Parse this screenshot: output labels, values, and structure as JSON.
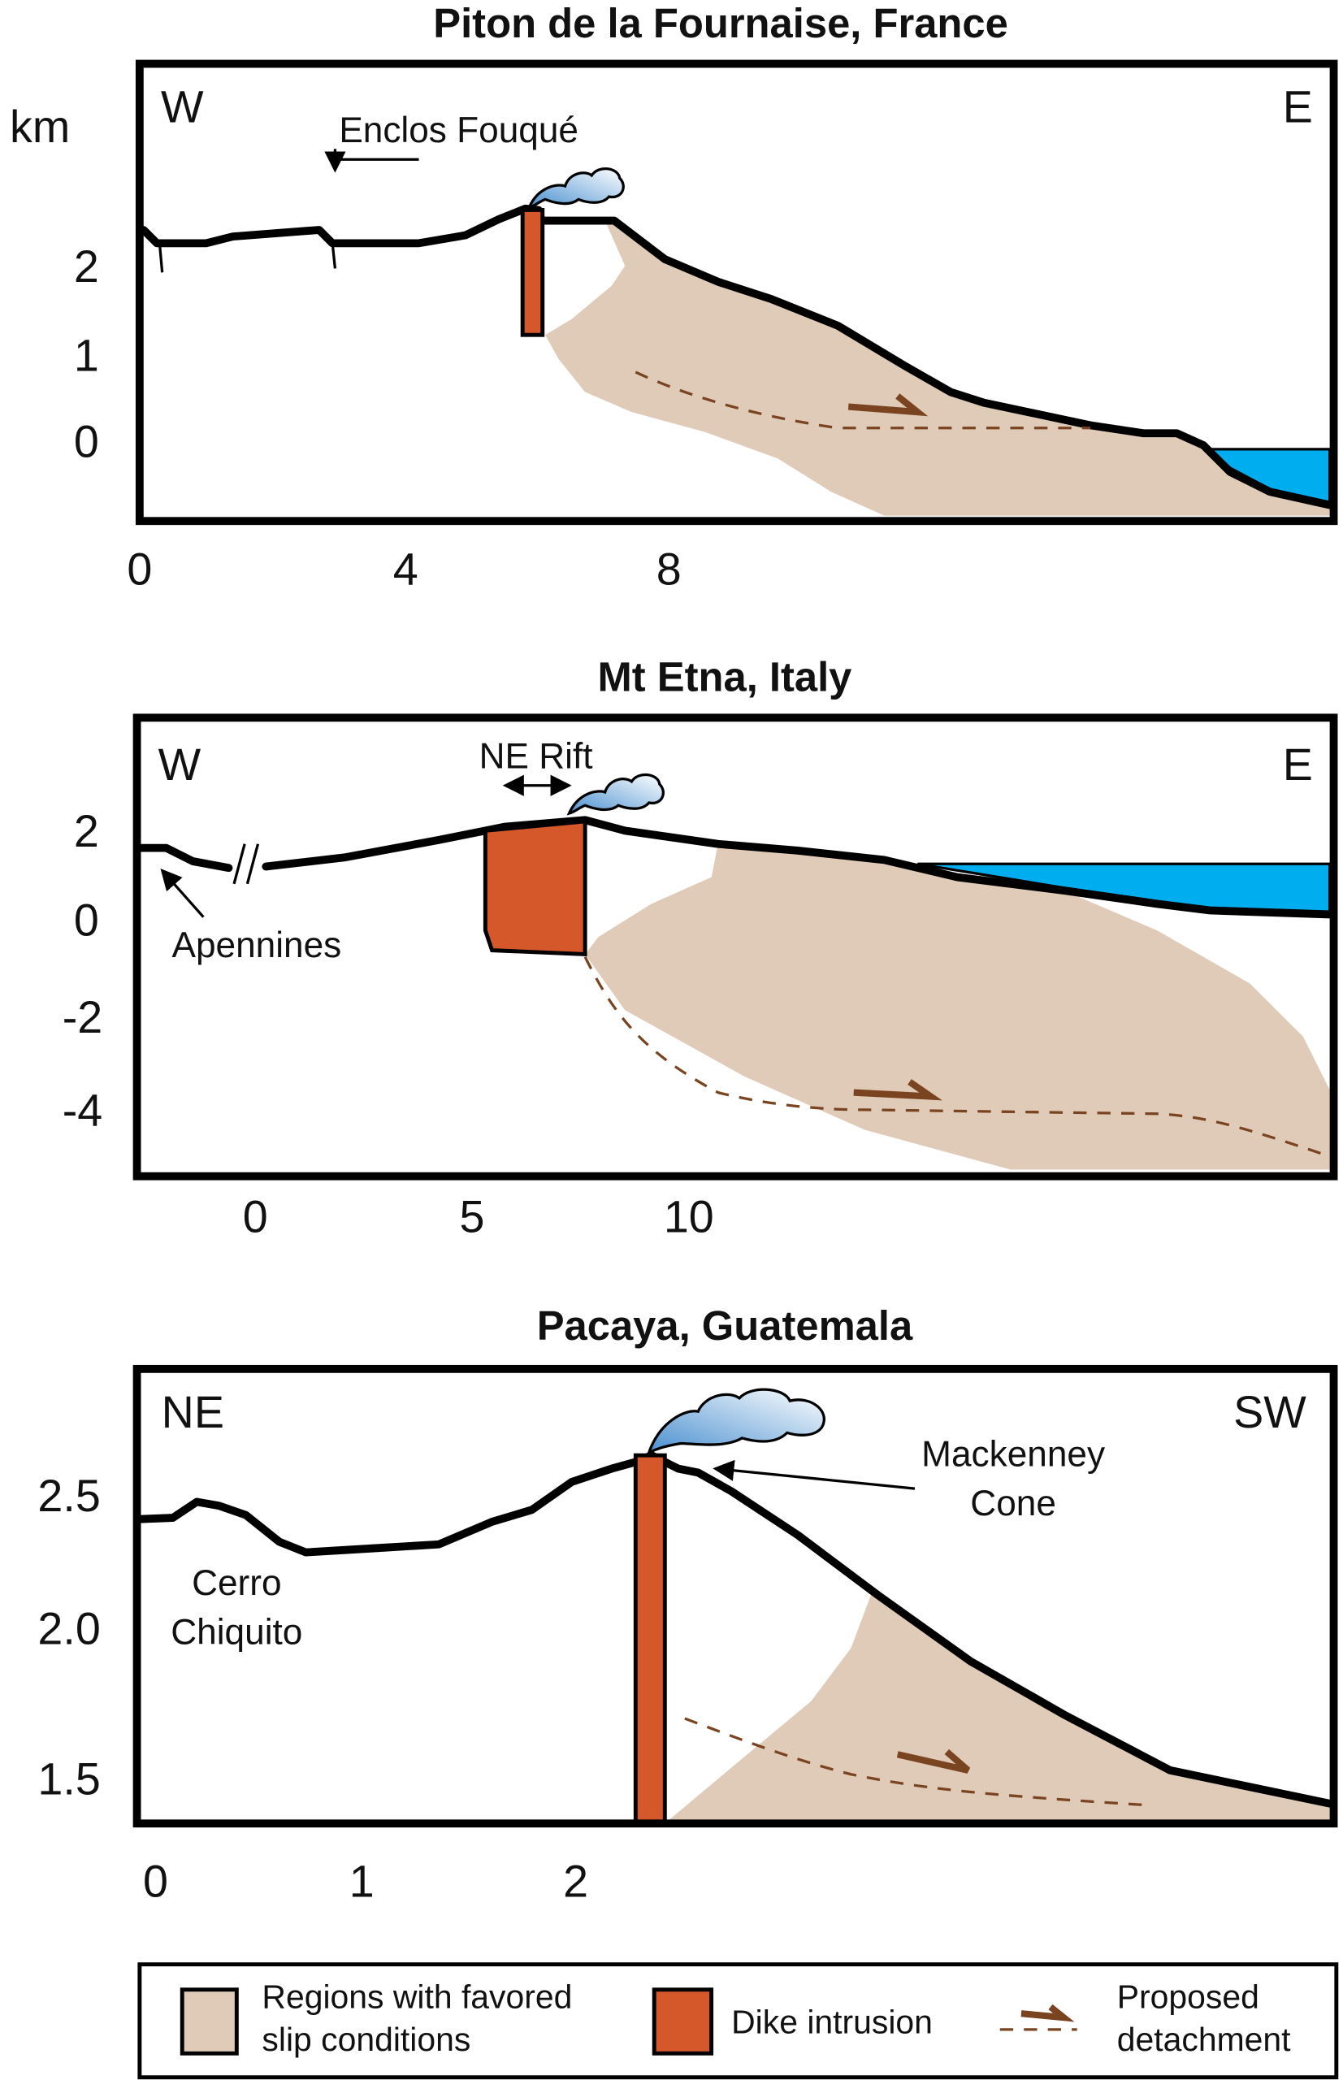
{
  "panels": [
    {
      "title": "Piton de la Fournaise, France",
      "y_unit": "km",
      "left_dir": "W",
      "right_dir": "E",
      "y_ticks": [
        "2",
        "1",
        "0"
      ],
      "x_ticks": [
        "0",
        "4",
        "8"
      ],
      "annotations": {
        "enclos": "Enclos Fouqué"
      }
    },
    {
      "title": "Mt Etna, Italy",
      "left_dir": "W",
      "right_dir": "E",
      "y_ticks": [
        "2",
        "0",
        "-2",
        "-4"
      ],
      "x_ticks": [
        "0",
        "5",
        "10"
      ],
      "annotations": {
        "rift": "NE Rift",
        "apennines": "Apennines"
      }
    },
    {
      "title": "Pacaya, Guatemala",
      "left_dir": "NE",
      "right_dir": "SW",
      "y_ticks": [
        "2.5",
        "2.0",
        "1.5"
      ],
      "x_ticks": [
        "0",
        "1",
        "2"
      ],
      "annotations": {
        "cerro_1": "Cerro",
        "cerro_2": "Chiquito",
        "mack_1": "Mackenney",
        "mack_2": "Cone"
      }
    }
  ],
  "legend": {
    "slip_1": "Regions with favored",
    "slip_2": "slip conditions",
    "dike": "Dike intrusion",
    "det_1": "Proposed",
    "det_2": "detachment"
  },
  "colors": {
    "slip_region": "#dfcbb8",
    "dike": "#d4582a",
    "sea": "#00aeef",
    "detachment": "#7b4421"
  }
}
